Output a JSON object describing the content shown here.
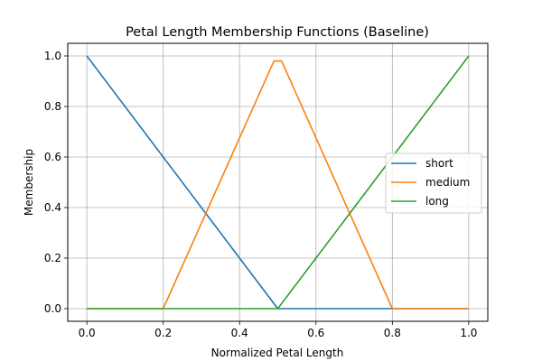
{
  "chart_data": {
    "type": "line",
    "title": "Petal Length Membership Functions (Baseline)",
    "xlabel": "Normalized Petal Length",
    "ylabel": "Membership",
    "xlim": [
      -0.05,
      1.05
    ],
    "ylim": [
      -0.05,
      1.05
    ],
    "xticks": [
      0.0,
      0.2,
      0.4,
      0.6,
      0.8,
      1.0
    ],
    "xtick_labels": [
      "0.0",
      "0.2",
      "0.4",
      "0.6",
      "0.8",
      "1.0"
    ],
    "yticks": [
      0.0,
      0.2,
      0.4,
      0.6,
      0.8,
      1.0
    ],
    "ytick_labels": [
      "0.0",
      "0.2",
      "0.4",
      "0.6",
      "0.8",
      "1.0"
    ],
    "grid": true,
    "legend_position": "center-right",
    "series": [
      {
        "name": "short",
        "color": "#1f77b4",
        "x": [
          0.0,
          0.49,
          0.5,
          1.0
        ],
        "y": [
          1.0,
          0.02,
          0.0,
          0.0
        ]
      },
      {
        "name": "medium",
        "color": "#ff7f0e",
        "x": [
          0.0,
          0.2,
          0.49,
          0.51,
          0.8,
          1.0
        ],
        "y": [
          0.0,
          0.0,
          0.98,
          0.98,
          0.0,
          0.0
        ]
      },
      {
        "name": "long",
        "color": "#2ca02c",
        "x": [
          0.0,
          0.5,
          0.51,
          1.0
        ],
        "y": [
          0.0,
          0.0,
          0.02,
          1.0
        ]
      }
    ]
  }
}
